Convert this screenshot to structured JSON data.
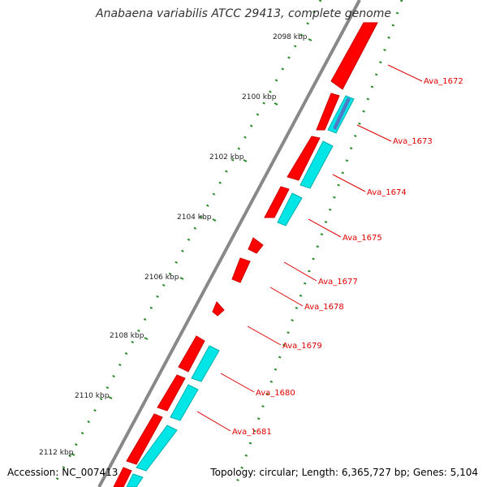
{
  "title": "Anabaena variabilis ATCC 29413, complete genome",
  "footer": {
    "accession": "Accession: NC_007413",
    "topology": "Topology: circular; Length: 6,365,727 bp; Genes: 5,104"
  },
  "colors": {
    "forward_cds": "#ff0000",
    "reverse_cds": "#00e5e5",
    "backbone": "#888888",
    "gc_dots": "#2a8a2a",
    "label": "#e00000"
  },
  "ticks": [
    {
      "label": "2098 kbp"
    },
    {
      "label": "2100 kbp"
    },
    {
      "label": "2102 kbp"
    },
    {
      "label": "2104 kbp"
    },
    {
      "label": "2106 kbp"
    },
    {
      "label": "2108 kbp"
    },
    {
      "label": "2110 kbp"
    },
    {
      "label": "2112 kbp"
    }
  ],
  "genes": [
    {
      "label": "Ava_1672"
    },
    {
      "label": "Ava_1673"
    },
    {
      "label": "Ava_1674"
    },
    {
      "label": "Ava_1675"
    },
    {
      "label": "Ava_1677"
    },
    {
      "label": "Ava_1678"
    },
    {
      "label": "Ava_1679"
    },
    {
      "label": "Ava_1680"
    },
    {
      "label": "Ava_1681"
    }
  ]
}
